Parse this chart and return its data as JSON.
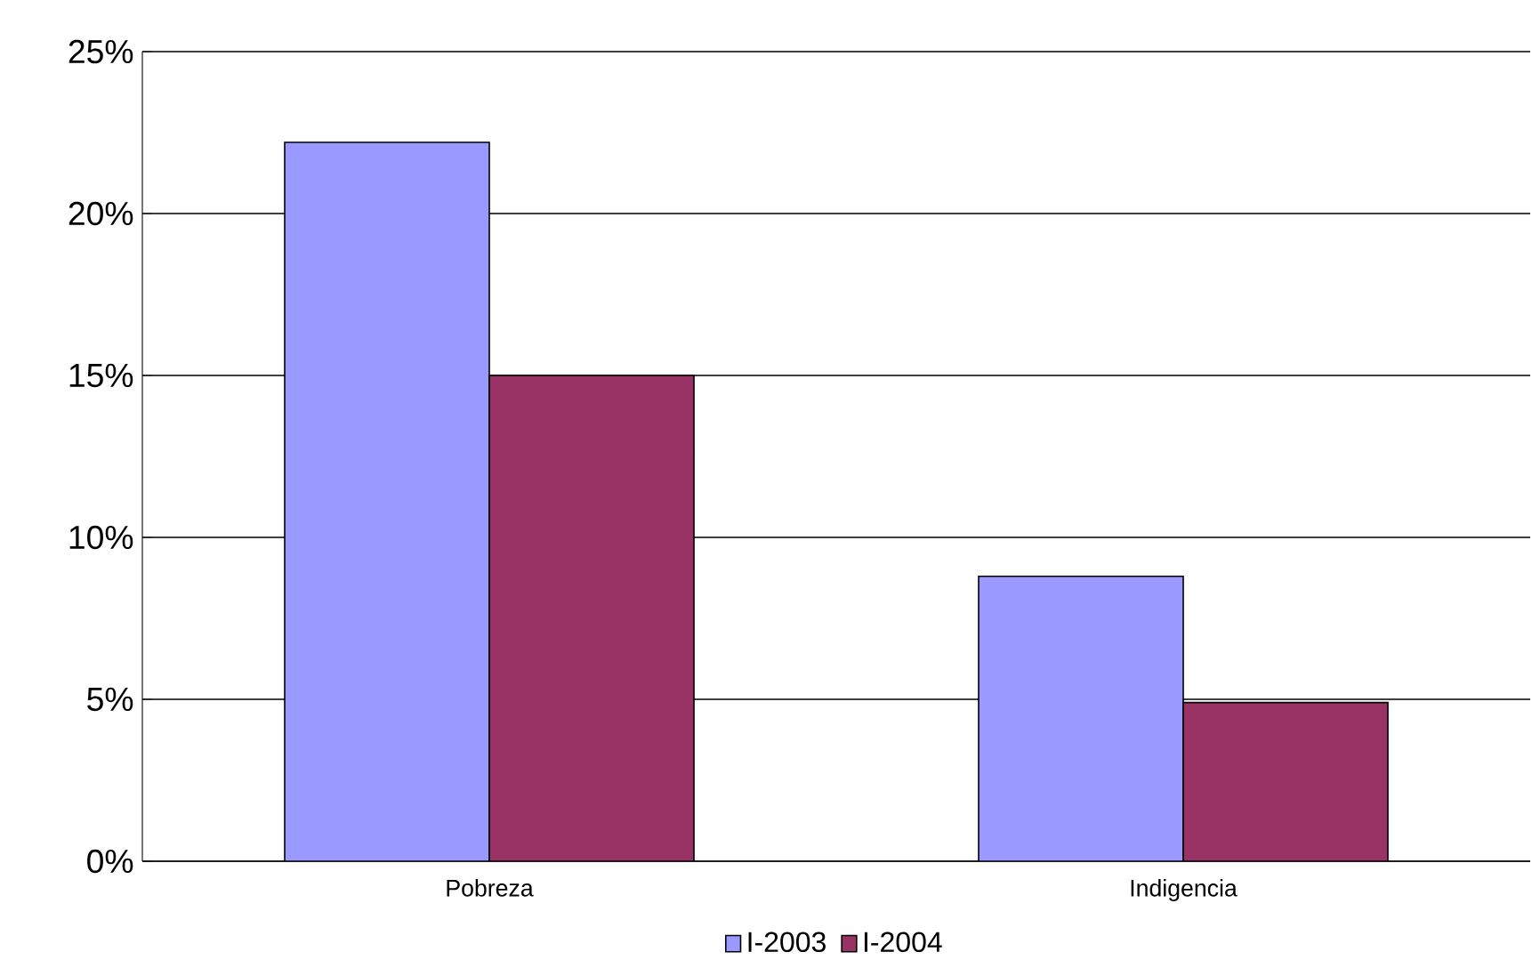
{
  "chart_data": {
    "type": "bar",
    "categories": [
      "Pobreza",
      "Indigencia"
    ],
    "series": [
      {
        "name": "I-2003",
        "color": "#9999ff",
        "values": [
          22.2,
          8.8
        ]
      },
      {
        "name": "I-2004",
        "color": "#993366",
        "values": [
          15.0,
          4.9
        ]
      }
    ],
    "ylim": [
      0,
      25
    ],
    "yticks": [
      {
        "value": 0,
        "label": "0%"
      },
      {
        "value": 5,
        "label": "5%"
      },
      {
        "value": 10,
        "label": "10%"
      },
      {
        "value": 15,
        "label": "15%"
      },
      {
        "value": 20,
        "label": "20%"
      },
      {
        "value": 25,
        "label": "25%"
      }
    ],
    "grid": "y",
    "legend": "bottom"
  }
}
